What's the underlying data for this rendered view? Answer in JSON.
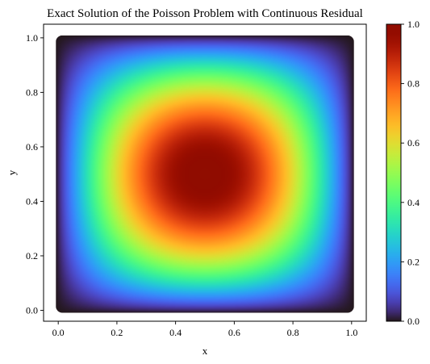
{
  "chart_data": {
    "type": "heatmap",
    "title": "Exact Solution of the Poisson Problem with Continuous Residual",
    "xlabel": "x",
    "ylabel": "y",
    "xlim": [
      -0.05,
      1.05
    ],
    "ylim": [
      -0.04,
      1.05
    ],
    "x_ticks": [
      0.0,
      0.2,
      0.4,
      0.6,
      0.8,
      1.0
    ],
    "y_ticks": [
      0.0,
      0.2,
      0.4,
      0.6,
      0.8,
      1.0
    ],
    "x_tick_labels": [
      "0.0",
      "0.2",
      "0.4",
      "0.6",
      "0.8",
      "1.0"
    ],
    "y_tick_labels": [
      "0.0",
      "0.2",
      "0.4",
      "0.6",
      "0.8",
      "1.0"
    ],
    "colorbar": {
      "min": 0.0,
      "max": 1.0,
      "ticks": [
        0.0,
        0.2,
        0.4,
        0.6,
        0.8,
        1.0
      ],
      "tick_labels": [
        "0.0",
        "0.2",
        "0.4",
        "0.6",
        "0.8",
        "1.0"
      ],
      "colormap": "turbo"
    },
    "field": {
      "function": "sin(pi*x)*sin(pi*y)",
      "domain_x": [
        0.0,
        1.0
      ],
      "domain_y": [
        0.0,
        1.0
      ],
      "peak_value": 1.0,
      "peak_location": [
        0.5,
        0.5
      ]
    },
    "grid": false
  }
}
